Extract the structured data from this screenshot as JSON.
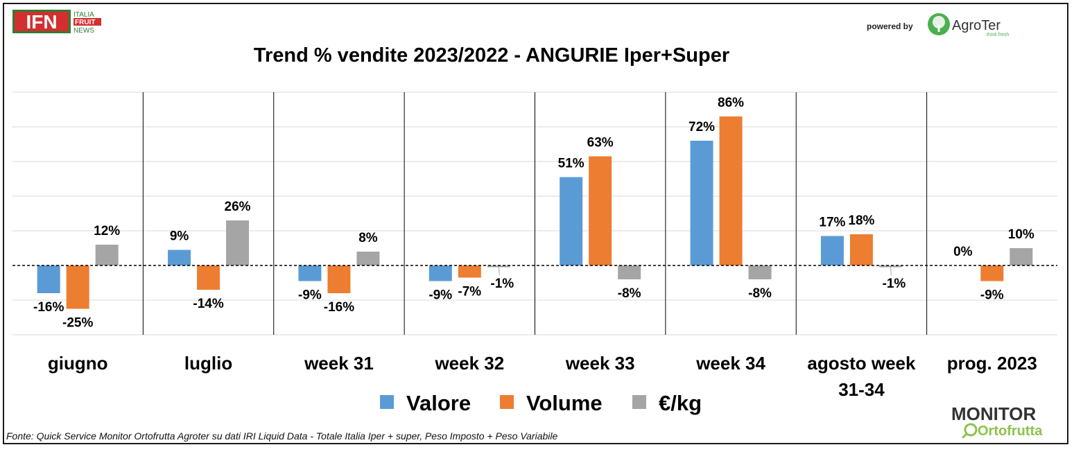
{
  "header": {
    "ifn_logo": {
      "letters": "IFN",
      "line1": "ITALIA",
      "line2": "FRUIT",
      "line3": "NEWS"
    },
    "powered_by": "powered by",
    "agroter_logo": {
      "name": "AgroTer",
      "tagline": "think fresh",
      "icon": "tree-icon"
    }
  },
  "footer": {
    "source": "Fonte: Quick Service Monitor Ortofrutta Agroter su dati IRI Liquid Data - Totale Italia Iper + super, Peso Imposto + Peso Variabile",
    "monitor_logo": {
      "line1": "MONITOR",
      "line2": "Ortofrutta",
      "icon": "magnifier-icon"
    }
  },
  "colors": {
    "valore": "#5b9bd5",
    "volume": "#ed7d31",
    "prezzo": "#a5a5a5"
  },
  "chart_data": {
    "type": "bar",
    "title": "Trend % vendite 2023/2022 - ANGURIE Iper+Super",
    "categories": [
      [
        "giugno"
      ],
      [
        "luglio"
      ],
      [
        "week 31"
      ],
      [
        "week 32"
      ],
      [
        "week 33"
      ],
      [
        "week 34"
      ],
      [
        "agosto week",
        "31-34"
      ],
      [
        "prog. 2023"
      ]
    ],
    "series": [
      {
        "name": "Valore",
        "values": [
          -16,
          9,
          -9,
          -9,
          51,
          72,
          17,
          0
        ],
        "labels": [
          "-16%",
          "9%",
          "-9%",
          "-9%",
          "51%",
          "72%",
          "17%",
          "0%"
        ]
      },
      {
        "name": "Volume",
        "values": [
          -25,
          -14,
          -16,
          -7,
          63,
          86,
          18,
          -9
        ],
        "labels": [
          "-25%",
          "-14%",
          "-16%",
          "-7%",
          "63%",
          "86%",
          "18%",
          "-9%"
        ]
      },
      {
        "name": "€/kg",
        "values": [
          12,
          26,
          8,
          -1,
          -8,
          -8,
          -1,
          10
        ],
        "labels": [
          "12%",
          "26%",
          "8%",
          "-1%",
          "-8%",
          "-8%",
          "-1%",
          "10%"
        ]
      }
    ],
    "ylim": [
      -40,
      100
    ],
    "gridlines": true,
    "legend": "bottom"
  }
}
